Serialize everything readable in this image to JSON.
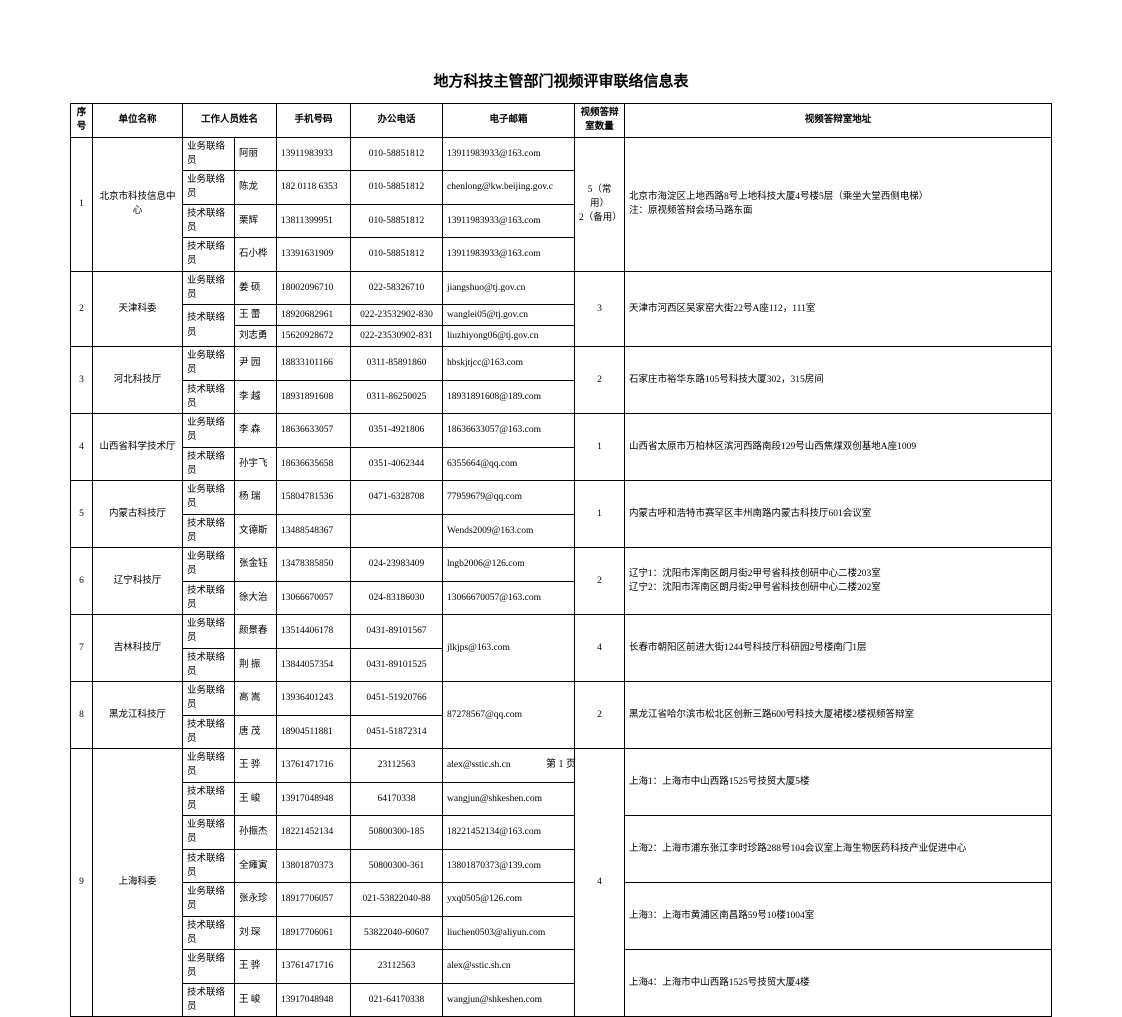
{
  "title": "地方科技主管部门视频评审联络信息表",
  "footer": "第 1 页",
  "headers": {
    "seq": "序号",
    "org": "单位名称",
    "staff": "工作人员姓名",
    "phone": "手机号码",
    "tel": "办公电话",
    "email": "电子邮箱",
    "qty": "视频答辩室数量",
    "addr": "视频答辩室地址"
  },
  "rows": [
    {
      "seq": "1",
      "org": "北京市科技信息中心",
      "role": "业务联络员",
      "name": "阿丽",
      "phone": "13911983933",
      "tel": "010-58851812",
      "email": "13911983933@163.com",
      "qty": "5（常用）\n2（备用）",
      "addr": "北京市海淀区上地西路8号上地科技大厦4号楼5层（乘坐大堂西侧电梯）\n注：原视频答辩会场马路东面"
    },
    {
      "role": "业务联络员",
      "name": "陈龙",
      "phone": "182 0118 6353",
      "tel": "010-58851812",
      "email": "chenlong@kw.beijing.gov.c"
    },
    {
      "role": "技术联络员",
      "name": "栗辉",
      "phone": "13811399951",
      "tel": "010-58851812",
      "email": "13911983933@163.com"
    },
    {
      "role": "技术联络员",
      "name": "石小桦",
      "phone": "13391631909",
      "tel": "010-58851812",
      "email": "13911983933@163.com"
    },
    {
      "seq": "2",
      "org": "天津科委",
      "role": "业务联络员",
      "name": "姜  硕",
      "phone": "18002096710",
      "tel": "022-58326710",
      "email": "jiangshuo@tj.gov.cn",
      "qty": "3",
      "addr": "天津市河西区吴家窑大街22号A座112，111室"
    },
    {
      "role": "技术联络员",
      "name": "王  蕾",
      "phone": "18920682961",
      "tel": "022-23532902-830",
      "email": "wanglei05@tj.gov.cn"
    },
    {
      "name": "刘志勇",
      "phone": "15620928672",
      "tel": "022-23530902-831",
      "email": "liuzhiyong06@tj.gov.cn"
    },
    {
      "seq": "3",
      "org": "河北科技厅",
      "role": "业务联络员",
      "name": "尹  园",
      "phone": "18833101166",
      "tel": "0311-85891860",
      "email": "hbskjtjcc@163.com",
      "qty": "2",
      "addr": "石家庄市裕华东路105号科技大厦302，315房间"
    },
    {
      "role": "技术联络员",
      "name": "李  越",
      "phone": "18931891608",
      "tel": "0311-86250025",
      "email": "18931891608@189.com"
    },
    {
      "seq": "4",
      "org": "山西省科学技术厅",
      "role": "业务联络员",
      "name": "李  森",
      "phone": "18636633057",
      "tel": "0351-4921806",
      "email": "18636633057@163.com",
      "qty": "1",
      "addr": "山西省太原市万柏林区滨河西路南段129号山西焦煤双创基地A座1009"
    },
    {
      "role": "技术联络员",
      "name": "孙宇飞",
      "phone": "18636635658",
      "tel": "0351-4062344",
      "email": "6355664@qq.com"
    },
    {
      "seq": "5",
      "org": "内蒙古科技厅",
      "role": "业务联络员",
      "name": "杨  瑞",
      "phone": "15804781536",
      "tel": "0471-6328708",
      "email": "77959679@qq.com",
      "qty": "1",
      "addr": "内蒙古呼和浩特市赛罕区丰州南路内蒙古科技厅601会议室"
    },
    {
      "role": "技术联络员",
      "name": "文德斯",
      "phone": "13488548367",
      "tel": "",
      "email": "Wends2009@163.com"
    },
    {
      "seq": "6",
      "org": "辽宁科技厅",
      "role": "业务联络员",
      "name": "张金钰",
      "phone": "13478385850",
      "tel": "024-23983409",
      "email": "lngb2006@126.com",
      "qty": "2",
      "addr": "辽宁1：沈阳市浑南区朗月街2甲号省科技创研中心二楼203室\n辽宁2：沈阳市浑南区朗月街2甲号省科技创研中心二楼202室"
    },
    {
      "role": "技术联络员",
      "name": "徐大治",
      "phone": "13066670057",
      "tel": "024-83186030",
      "email": "13066670057@163.com"
    },
    {
      "seq": "7",
      "org": "吉林科技厅",
      "role": "业务联络员",
      "name": "颜景春",
      "phone": "13514406178",
      "tel": "0431-89101567",
      "email": "jlkjps@163.com",
      "qty": "4",
      "addr": "长春市朝阳区前进大街1244号科技厅科研园2号楼南门1层"
    },
    {
      "role": "技术联络员",
      "name": "荆  振",
      "phone": "13844057354",
      "tel": "0431-89101525",
      "email": ""
    },
    {
      "seq": "8",
      "org": "黑龙江科技厅",
      "role": "业务联络员",
      "name": "高  嵩",
      "phone": "13936401243",
      "tel": "0451-51920766",
      "email": "87278567@qq.com",
      "qty": "2",
      "addr": "黑龙江省哈尔滨市松北区创新三路600号科技大厦裙楼2楼视频答辩室"
    },
    {
      "role": "技术联络员",
      "name": "唐  茂",
      "phone": "18904511881",
      "tel": "0451-51872314",
      "email": ""
    },
    {
      "seq": "9",
      "org": "上海科委",
      "role": "业务联络员",
      "name": "王  骅",
      "phone": "13761471716",
      "tel": "23112563",
      "email": "alex@sstic.sh.cn",
      "qty": "4",
      "addr": "上海1：上海市中山西路1525号技贸大厦5楼"
    },
    {
      "role": "技术联络员",
      "name": "王  峻",
      "phone": "13917048948",
      "tel": "64170338",
      "email": "wangjun@shkeshen.com"
    },
    {
      "role": "业务联络员",
      "name": "孙振杰",
      "phone": "18221452134",
      "tel": "50800300-185",
      "email": "18221452134@163.com",
      "addr": "上海2：上海市浦东张江李时珍路288号104会议室上海生物医药科技产业促进中心"
    },
    {
      "role": "技术联络员",
      "name": "全瘫寅",
      "phone": "13801870373",
      "tel": "50800300-361",
      "email": "13801870373@139.com"
    },
    {
      "role": "业务联络员",
      "name": "张永珍",
      "phone": "18917706057",
      "tel": "021-53822040-88",
      "email": "yxq0505@126.com",
      "addr": "上海3：上海市黄浦区南昌路59号10楼1004室"
    },
    {
      "role": "技术联络员",
      "name": "刘  琛",
      "phone": "18917706061",
      "tel": "53822040-60607",
      "email": "liuchen0503@aliyun.com"
    },
    {
      "role": "业务联络员",
      "name": "王  骅",
      "phone": "13761471716",
      "tel": "23112563",
      "email": "alex@sstic.sh.cn",
      "addr": "上海4：上海市中山西路1525号技贸大厦4楼"
    },
    {
      "role": "技术联络员",
      "name": "王  峻",
      "phone": "13917048948",
      "tel": "021-64170338",
      "email": "wangjun@shkeshen.com"
    }
  ]
}
